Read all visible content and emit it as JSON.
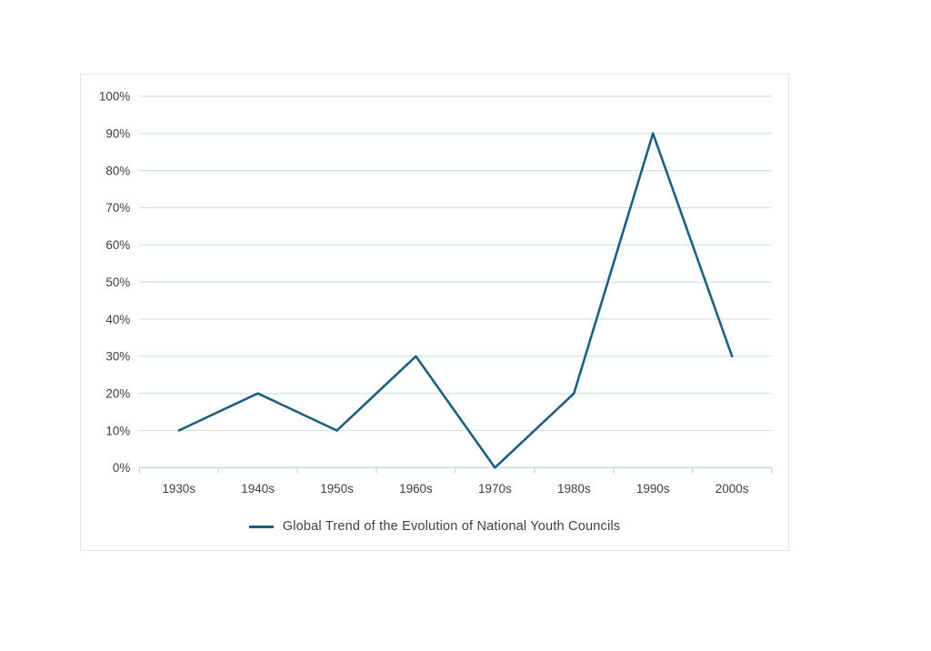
{
  "chart_data": {
    "type": "line",
    "categories": [
      "1930s",
      "1940s",
      "1950s",
      "1960s",
      "1970s",
      "1980s",
      "1990s",
      "2000s"
    ],
    "values": [
      10,
      20,
      10,
      30,
      0,
      20,
      90,
      30
    ],
    "series_name": "Global Trend of the Evolution of National Youth Councils",
    "title": "",
    "xlabel": "",
    "ylabel": "",
    "ylim": [
      0,
      100
    ],
    "y_tick_step": 10,
    "y_tick_labels": [
      "0%",
      "10%",
      "20%",
      "30%",
      "40%",
      "50%",
      "60%",
      "70%",
      "80%",
      "90%",
      "100%"
    ],
    "grid": true,
    "legend_position": "bottom",
    "colors": {
      "line": "#1e5f7e",
      "gridline": "#d2e4ee",
      "axis": "#c2d8e4",
      "text": "#3b4045",
      "border": "#dce8f0",
      "background": "#ffffff"
    }
  }
}
